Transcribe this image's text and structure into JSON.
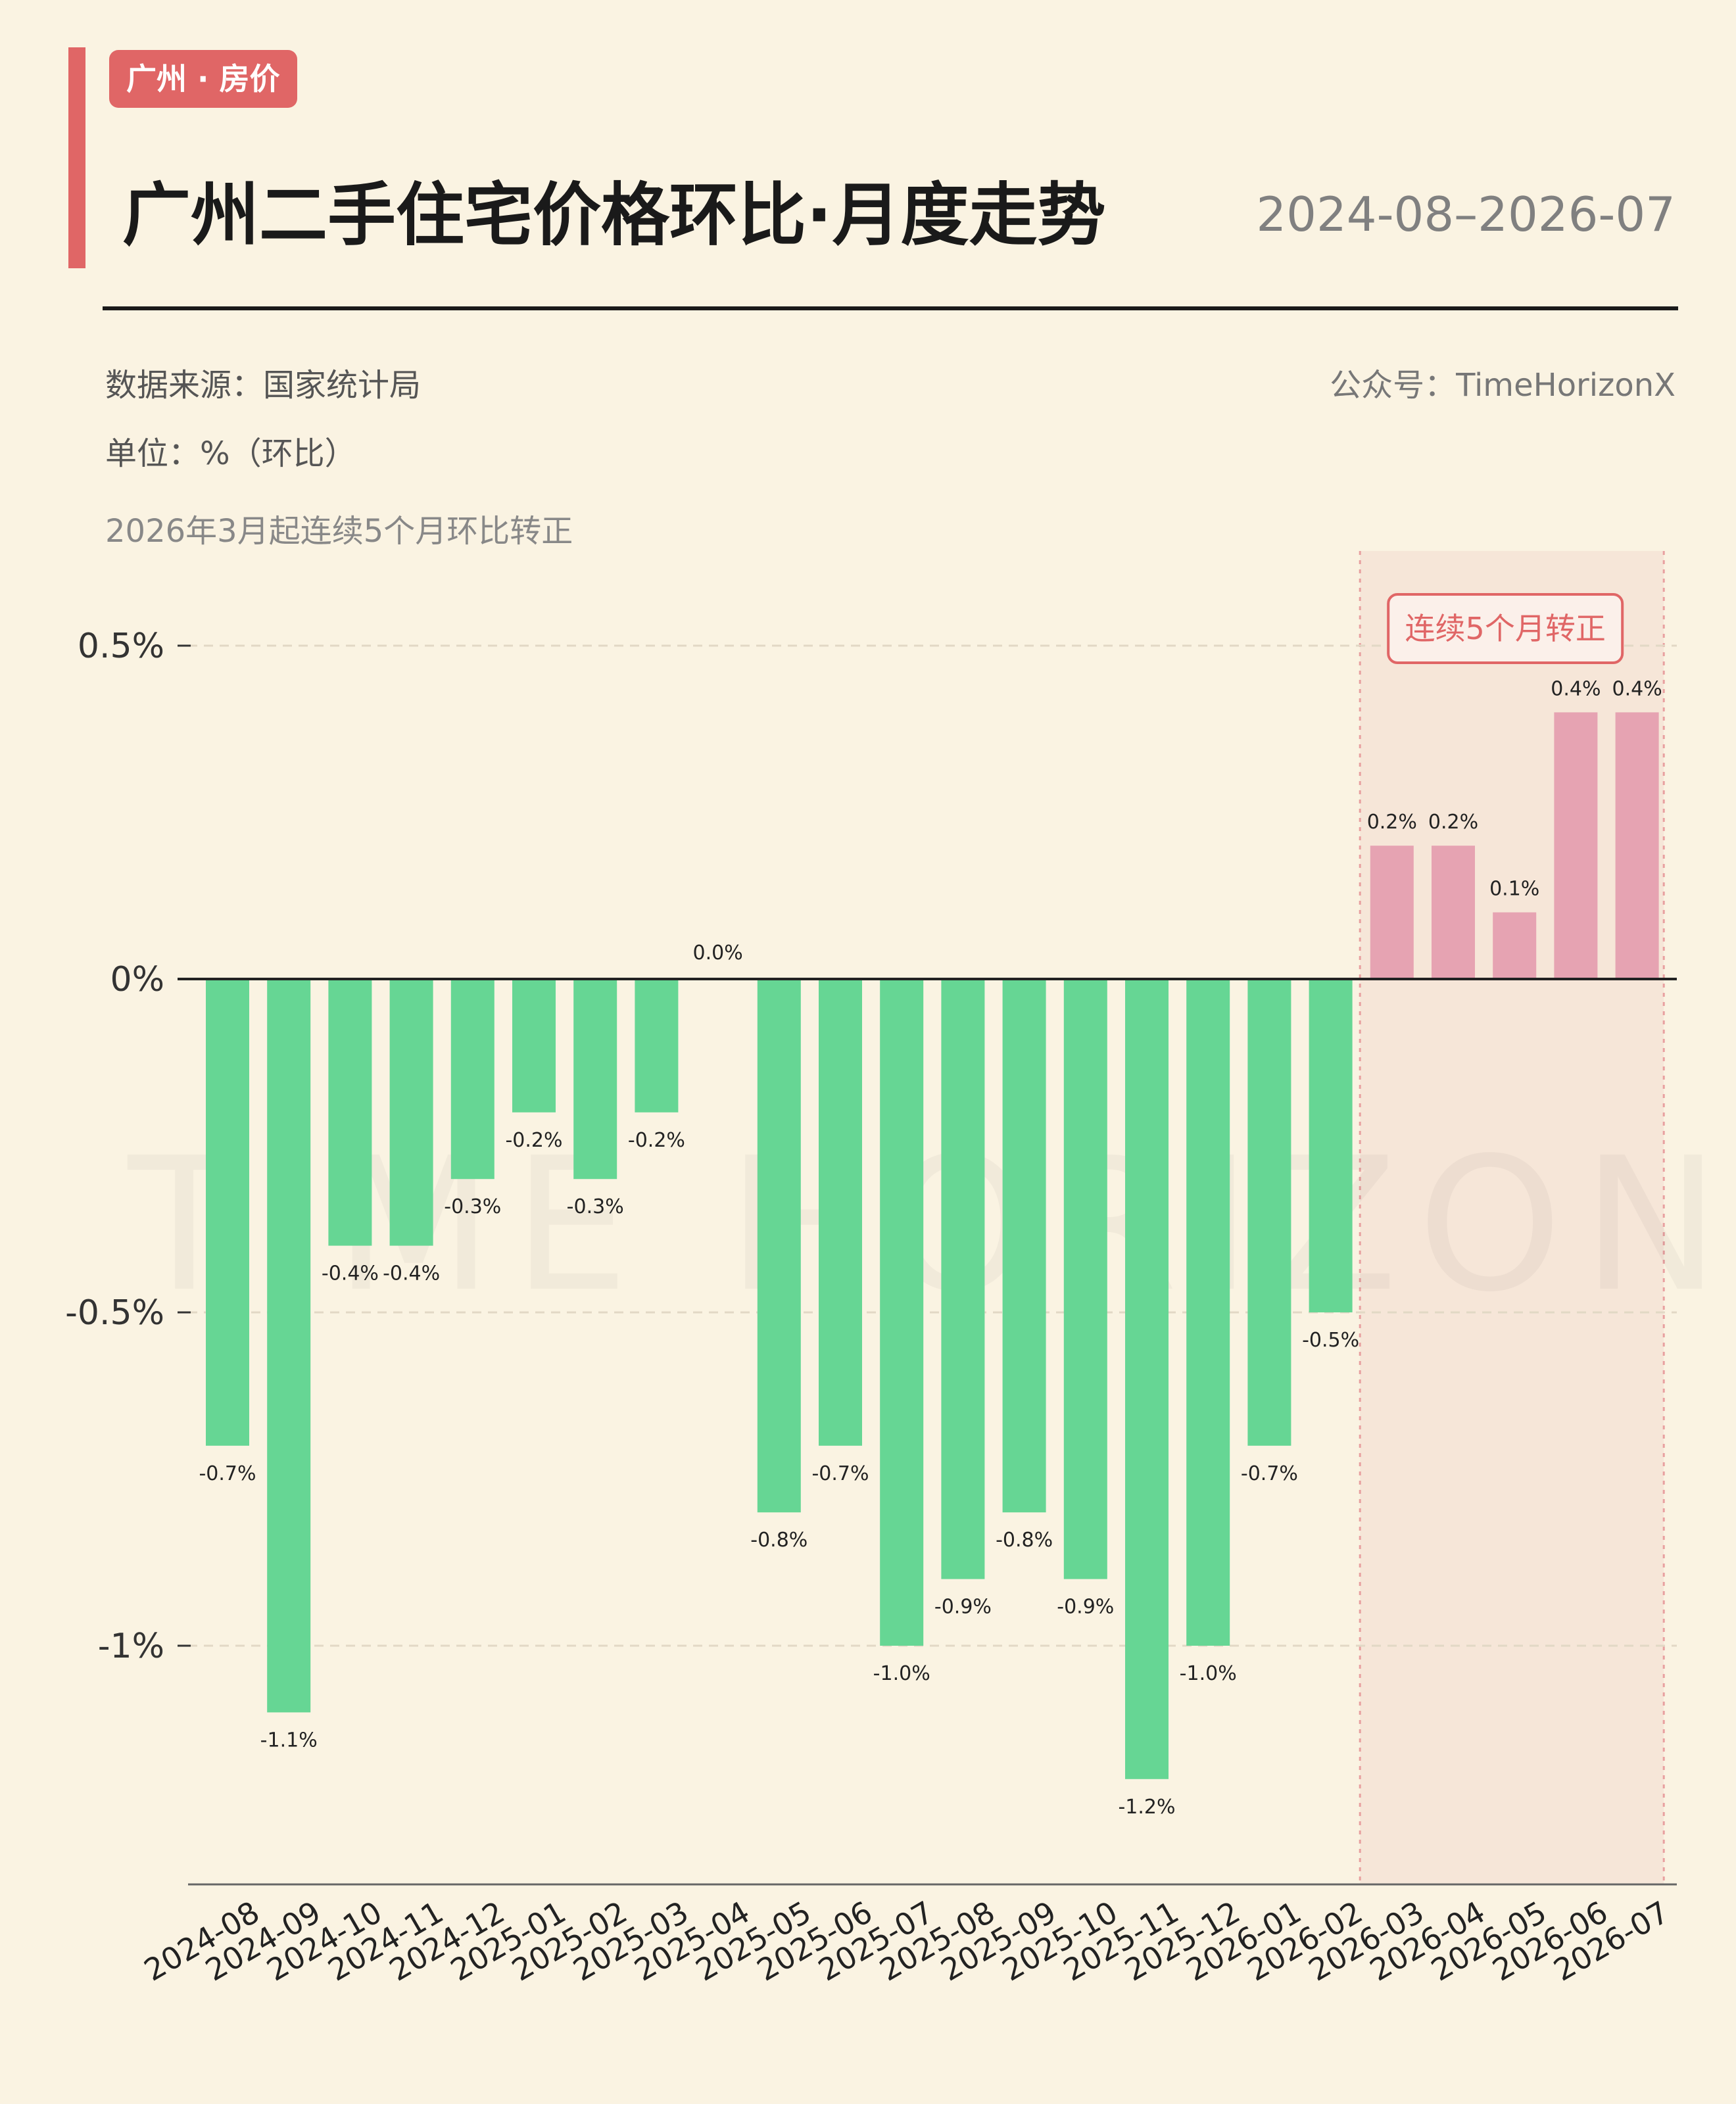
{
  "header": {
    "tag": "广州 · 房价",
    "title": "广州二手住宅价格环比·月度走势",
    "date_range": "2024-08–2026-07",
    "source": "数据来源：国家统计局",
    "unit": "单位：%（环比）",
    "account": "公众号：TimeHorizonX",
    "note": "2026年3月起连续5个月环比转正"
  },
  "watermark": "TIME HORIZON",
  "colors": {
    "negative": "#66d694",
    "positive": "#e6a3b2",
    "accent": "#e06666",
    "highlight_fill": "#f6e6d8"
  },
  "chart_data": {
    "type": "bar",
    "title": "广州二手住宅价格环比·月度走势",
    "xlabel": "",
    "ylabel": "",
    "ylim": [
      -1.35,
      0.65
    ],
    "yticks": [
      {
        "value": 0.5,
        "label": "0.5%"
      },
      {
        "value": 0,
        "label": "0%"
      },
      {
        "value": -0.5,
        "label": "-0.5%"
      },
      {
        "value": -1,
        "label": "-1%"
      }
    ],
    "grid": true,
    "categories": [
      "2024-08",
      "2024-09",
      "2024-10",
      "2024-11",
      "2024-12",
      "2025-01",
      "2025-02",
      "2025-03",
      "2025-04",
      "2025-05",
      "2025-06",
      "2025-07",
      "2025-08",
      "2025-09",
      "2025-10",
      "2025-11",
      "2025-12",
      "2026-01",
      "2026-02",
      "2026-03",
      "2026-04",
      "2026-05",
      "2026-06",
      "2026-07"
    ],
    "values": [
      -0.7,
      -1.1,
      -0.4,
      -0.4,
      -0.3,
      -0.2,
      -0.3,
      -0.2,
      0.0,
      -0.8,
      -0.7,
      -1.0,
      -0.9,
      -0.8,
      -0.9,
      -1.2,
      -1.0,
      -0.7,
      -0.5,
      0.2,
      0.2,
      0.1,
      0.4,
      0.4
    ],
    "value_labels": [
      "-0.7%",
      "-1.1%",
      "-0.4%",
      "-0.4%",
      "-0.3%",
      "-0.2%",
      "-0.3%",
      "-0.2%",
      "0.0%",
      "-0.8%",
      "-0.7%",
      "-1.0%",
      "-0.9%",
      "-0.8%",
      "-0.9%",
      "-1.2%",
      "-1.0%",
      "-0.7%",
      "-0.5%",
      "0.2%",
      "0.2%",
      "0.1%",
      "0.4%",
      "0.4%"
    ],
    "highlight": {
      "from": "2026-03",
      "to": "2026-07",
      "label": "连续5个月转正"
    }
  }
}
